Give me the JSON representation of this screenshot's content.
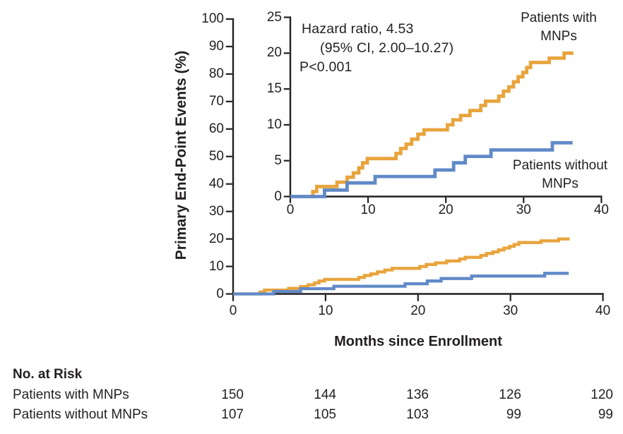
{
  "figure": {
    "y_axis_label": "Primary End-Point Events (%)",
    "x_axis_label": "Months since Enrollment"
  },
  "at_risk": {
    "title": "No. at Risk",
    "rows": [
      {
        "label": "Patients with MNPs",
        "values": [
          "150",
          "144",
          "136",
          "126",
          "120"
        ]
      },
      {
        "label": "Patients without MNPs",
        "values": [
          "107",
          "105",
          "103",
          "99",
          "99"
        ]
      }
    ]
  },
  "chart_data": {
    "type": "line",
    "subtype": "kaplan-meier-cumulative-incidence-step",
    "title": "",
    "xlabel": "Months since Enrollment",
    "ylabel": "Primary End-Point Events (%)",
    "grid": false,
    "hazard_annotation": {
      "line1": "Hazard ratio, 4.53",
      "line2": "(95% CI, 2.00–10.27)",
      "line3": "P<0.001"
    },
    "main_axis": {
      "xlim": [
        0,
        40
      ],
      "ylim": [
        0,
        100
      ],
      "xticks": [
        0,
        10,
        20,
        30,
        40
      ],
      "yticks": [
        0,
        10,
        20,
        30,
        40,
        50,
        60,
        70,
        80,
        90,
        100
      ]
    },
    "inset_axis": {
      "xlim": [
        0,
        40
      ],
      "ylim": [
        0,
        25
      ],
      "xticks": [
        0,
        10,
        20,
        30,
        40
      ],
      "yticks": [
        0,
        5,
        10,
        15,
        20,
        25
      ]
    },
    "series": [
      {
        "name": "Patients with MNPs",
        "label_lines": [
          "Patients with",
          "MNPs"
        ],
        "color": "#E8A43D",
        "end_month": 36.4,
        "steps": [
          [
            0,
            0
          ],
          [
            2.9,
            0.7
          ],
          [
            3.4,
            1.4
          ],
          [
            6.0,
            2.0
          ],
          [
            7.3,
            2.7
          ],
          [
            8.1,
            3.3
          ],
          [
            8.8,
            4.0
          ],
          [
            9.3,
            4.7
          ],
          [
            9.9,
            5.3
          ],
          [
            13.6,
            6.0
          ],
          [
            14.2,
            6.7
          ],
          [
            14.9,
            7.3
          ],
          [
            15.6,
            8.0
          ],
          [
            16.4,
            8.7
          ],
          [
            17.2,
            9.3
          ],
          [
            20.2,
            10.0
          ],
          [
            20.9,
            10.7
          ],
          [
            21.9,
            11.3
          ],
          [
            23.1,
            12.0
          ],
          [
            24.5,
            12.7
          ],
          [
            25.1,
            13.3
          ],
          [
            26.8,
            14.0
          ],
          [
            27.4,
            14.7
          ],
          [
            28.1,
            15.3
          ],
          [
            28.7,
            16.0
          ],
          [
            29.3,
            16.7
          ],
          [
            29.9,
            17.3
          ],
          [
            30.4,
            18.0
          ],
          [
            30.9,
            18.7
          ],
          [
            33.3,
            19.3
          ],
          [
            35.2,
            20.0
          ]
        ]
      },
      {
        "name": "Patients without MNPs",
        "label_lines": [
          "Patients without",
          "MNPs"
        ],
        "color": "#6089C7",
        "end_month": 36.3,
        "steps": [
          [
            0,
            0
          ],
          [
            4.4,
            0.9
          ],
          [
            7.3,
            1.9
          ],
          [
            10.9,
            2.8
          ],
          [
            18.6,
            3.7
          ],
          [
            21.0,
            4.7
          ],
          [
            22.5,
            5.6
          ],
          [
            25.8,
            6.5
          ],
          [
            33.7,
            7.5
          ]
        ]
      }
    ]
  }
}
